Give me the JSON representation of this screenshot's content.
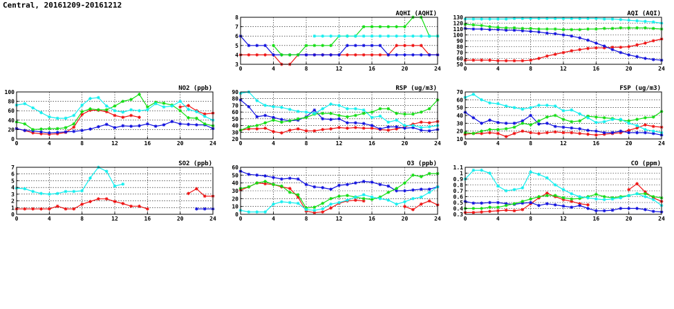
{
  "title": "Central, 20161209-20161212",
  "colors": {
    "red": "#ee1111",
    "blue": "#1010dd",
    "green": "#11dd11",
    "cyan": "#11eeee"
  },
  "chart_data": [
    {
      "id": "aqhi",
      "type": "line",
      "title": "AQHI (AQHI)",
      "xlim": [
        0,
        24
      ],
      "xticks": [
        0,
        4,
        8,
        12,
        16,
        20,
        24
      ],
      "ylim": [
        3,
        8
      ],
      "yticks": [
        3,
        4,
        5,
        6,
        7,
        8
      ],
      "grid": true,
      "series": [
        {
          "color": "red",
          "y": [
            4,
            4,
            4,
            4,
            4,
            3,
            3,
            4,
            4,
            4,
            4,
            4,
            4,
            4,
            4,
            4,
            4,
            4,
            4,
            5,
            5,
            5,
            5,
            4,
            4
          ]
        },
        {
          "color": "blue",
          "y": [
            6,
            5,
            5,
            5,
            4,
            4,
            4,
            4,
            4,
            4,
            4,
            4,
            4,
            5,
            5,
            5,
            5,
            5,
            4,
            4,
            4,
            4,
            4,
            4,
            4
          ]
        },
        {
          "color": "green",
          "y": [
            null,
            null,
            null,
            null,
            5,
            4,
            4,
            4,
            5,
            5,
            5,
            5,
            6,
            6,
            6,
            7,
            7,
            7,
            7,
            7,
            7,
            8,
            8,
            6,
            6
          ]
        },
        {
          "color": "cyan",
          "y": [
            null,
            null,
            null,
            null,
            null,
            null,
            null,
            null,
            null,
            6,
            6,
            6,
            6,
            6,
            6,
            6,
            6,
            6,
            6,
            6,
            6,
            6,
            6,
            6,
            6
          ]
        }
      ]
    },
    {
      "id": "aqi",
      "type": "line",
      "title": "AQI (AQI)",
      "xlim": [
        0,
        24
      ],
      "xticks": [
        0,
        4,
        8,
        12,
        16,
        20,
        24
      ],
      "ylim": [
        50,
        130
      ],
      "yticks": [
        50,
        60,
        70,
        80,
        90,
        100,
        110,
        120,
        130
      ],
      "grid": true,
      "series": [
        {
          "color": "red",
          "y": [
            57,
            57,
            57,
            57,
            56,
            56,
            56,
            56,
            57,
            60,
            64,
            67,
            70,
            73,
            75,
            77,
            78,
            78,
            79,
            79,
            80,
            83,
            86,
            90,
            93
          ]
        },
        {
          "color": "blue",
          "y": [
            111,
            110,
            110,
            109,
            109,
            108,
            108,
            107,
            106,
            105,
            103,
            102,
            100,
            98,
            95,
            91,
            86,
            81,
            75,
            70,
            66,
            63,
            60,
            58,
            57
          ]
        },
        {
          "color": "green",
          "y": [
            118,
            117,
            116,
            114,
            113,
            112,
            112,
            111,
            111,
            110,
            110,
            110,
            109,
            109,
            109,
            110,
            110,
            111,
            111,
            112,
            112,
            112,
            112,
            111,
            110
          ]
        },
        {
          "color": "cyan",
          "y": [
            127,
            127,
            127,
            127,
            127,
            127,
            128,
            128,
            128,
            128,
            128,
            128,
            128,
            128,
            128,
            128,
            128,
            127,
            127,
            126,
            125,
            124,
            123,
            122,
            120
          ]
        }
      ]
    },
    {
      "id": "no2",
      "type": "line",
      "title": "NO2 (ppb)",
      "xlim": [
        0,
        24
      ],
      "xticks": [
        0,
        4,
        8,
        12,
        16,
        20,
        24
      ],
      "ylim": [
        0,
        100
      ],
      "yticks": [
        0,
        20,
        40,
        60,
        80,
        100
      ],
      "grid": true,
      "series": [
        {
          "color": "red",
          "y": [
            22,
            18,
            13,
            11,
            10,
            11,
            14,
            25,
            52,
            61,
            61,
            58,
            50,
            46,
            50,
            46,
            null,
            null,
            null,
            null,
            68,
            71,
            60,
            53,
            55
          ]
        },
        {
          "color": "blue",
          "y": [
            22,
            18,
            17,
            15,
            13,
            14,
            15,
            16,
            18,
            21,
            26,
            31,
            24,
            28,
            27,
            28,
            32,
            27,
            30,
            37,
            32,
            31,
            30,
            30,
            22
          ]
        },
        {
          "color": "green",
          "y": [
            36,
            32,
            20,
            21,
            22,
            22,
            24,
            32,
            58,
            64,
            62,
            62,
            70,
            80,
            84,
            95,
            68,
            78,
            76,
            72,
            60,
            45,
            44,
            32,
            28
          ]
        },
        {
          "color": "cyan",
          "y": [
            72,
            75,
            66,
            56,
            47,
            44,
            44,
            50,
            72,
            86,
            88,
            70,
            60,
            57,
            62,
            60,
            62,
            75,
            68,
            70,
            80,
            63,
            58,
            48,
            40
          ]
        }
      ]
    },
    {
      "id": "rsp",
      "type": "line",
      "title": "RSP (ug/m3)",
      "xlim": [
        0,
        24
      ],
      "xticks": [
        0,
        4,
        8,
        12,
        16,
        20,
        24
      ],
      "ylim": [
        20,
        90
      ],
      "yticks": [
        20,
        30,
        40,
        50,
        60,
        70,
        80,
        90
      ],
      "grid": true,
      "series": [
        {
          "color": "red",
          "y": [
            33,
            35,
            35,
            36,
            31,
            29,
            33,
            35,
            32,
            32,
            34,
            35,
            37,
            36,
            37,
            36,
            36,
            34,
            33,
            35,
            38,
            42,
            45,
            44,
            46
          ]
        },
        {
          "color": "blue",
          "y": [
            78,
            68,
            53,
            55,
            52,
            49,
            47,
            48,
            53,
            63,
            50,
            49,
            50,
            44,
            44,
            43,
            40,
            35,
            38,
            38,
            36,
            37,
            33,
            32,
            34
          ]
        },
        {
          "color": "green",
          "y": [
            33,
            38,
            40,
            44,
            48,
            45,
            47,
            50,
            52,
            57,
            58,
            58,
            55,
            53,
            55,
            58,
            60,
            65,
            65,
            58,
            57,
            57,
            60,
            65,
            78
          ]
        },
        {
          "color": "cyan",
          "y": [
            88,
            90,
            77,
            70,
            68,
            67,
            64,
            61,
            60,
            58,
            65,
            72,
            70,
            65,
            65,
            63,
            52,
            54,
            45,
            48,
            40,
            40,
            37,
            38,
            40
          ]
        }
      ]
    },
    {
      "id": "fsp",
      "type": "line",
      "title": "FSP (ug/m3)",
      "xlim": [
        0,
        24
      ],
      "xticks": [
        0,
        4,
        8,
        12,
        16,
        20,
        24
      ],
      "ylim": [
        10,
        70
      ],
      "yticks": [
        10,
        20,
        30,
        40,
        50,
        60,
        70
      ],
      "grid": true,
      "series": [
        {
          "color": "red",
          "y": [
            16,
            17,
            17,
            18,
            17,
            13,
            17,
            20,
            18,
            17,
            18,
            19,
            18,
            18,
            17,
            16,
            15,
            16,
            17,
            18,
            21,
            24,
            28,
            26,
            25
          ]
        },
        {
          "color": "blue",
          "y": [
            44,
            37,
            30,
            34,
            31,
            30,
            30,
            33,
            40,
            29,
            30,
            26,
            25,
            24,
            23,
            21,
            20,
            18,
            18,
            20,
            18,
            18,
            18,
            17,
            15
          ]
        },
        {
          "color": "green",
          "y": [
            18,
            17,
            20,
            22,
            22,
            23,
            25,
            30,
            28,
            33,
            38,
            40,
            35,
            32,
            33,
            39,
            38,
            37,
            36,
            34,
            33,
            35,
            37,
            38,
            45
          ]
        },
        {
          "color": "cyan",
          "y": [
            63,
            67,
            60,
            56,
            55,
            52,
            50,
            48,
            50,
            53,
            53,
            52,
            46,
            47,
            42,
            37,
            31,
            32,
            35,
            35,
            30,
            27,
            22,
            20,
            18
          ]
        }
      ]
    },
    {
      "id": "so2",
      "type": "line",
      "title": "SO2 (ppb)",
      "xlim": [
        0,
        24
      ],
      "xticks": [
        0,
        4,
        8,
        12,
        16,
        20,
        24
      ],
      "ylim": [
        0,
        7
      ],
      "yticks": [
        0,
        1,
        2,
        3,
        4,
        5,
        6,
        7
      ],
      "grid": true,
      "series": [
        {
          "color": "red",
          "y": [
            0.8,
            0.8,
            0.8,
            0.8,
            0.8,
            1.2,
            0.8,
            0.8,
            1.5,
            1.9,
            2.3,
            2.3,
            1.9,
            1.6,
            1.2,
            1.2,
            0.8,
            null,
            null,
            null,
            null,
            3.1,
            3.8,
            2.7,
            2.7
          ]
        },
        {
          "color": "blue",
          "y": [
            null,
            null,
            null,
            null,
            null,
            null,
            null,
            null,
            null,
            null,
            null,
            null,
            null,
            null,
            null,
            null,
            null,
            null,
            null,
            null,
            null,
            null,
            0.8,
            0.8,
            0.8
          ]
        },
        {
          "color": "cyan",
          "y": [
            3.9,
            3.8,
            3.4,
            3.1,
            3.0,
            3.1,
            3.4,
            3.4,
            3.5,
            5.4,
            7.0,
            6.4,
            4.2,
            4.5,
            null,
            null,
            null,
            null,
            null,
            null,
            null,
            null,
            null,
            null,
            null
          ]
        }
      ]
    },
    {
      "id": "o3",
      "type": "line",
      "title": "O3 (ppb)",
      "xlim": [
        0,
        24
      ],
      "xticks": [
        0,
        4,
        8,
        12,
        16,
        20,
        24
      ],
      "ylim": [
        0,
        60
      ],
      "yticks": [
        0,
        10,
        20,
        30,
        40,
        50,
        60
      ],
      "grid": true,
      "series": [
        {
          "color": "red",
          "y": [
            31,
            35,
            40,
            39,
            38,
            35,
            33,
            22,
            4,
            2,
            3,
            8,
            14,
            17,
            18,
            17,
            null,
            null,
            null,
            null,
            10,
            6,
            13,
            17,
            12
          ]
        },
        {
          "color": "blue",
          "y": [
            55,
            51,
            50,
            49,
            47,
            45,
            46,
            45,
            38,
            35,
            34,
            32,
            37,
            38,
            40,
            42,
            41,
            38,
            36,
            30,
            30,
            31,
            32,
            32,
            35
          ]
        },
        {
          "color": "green",
          "y": [
            33,
            35,
            40,
            42,
            38,
            36,
            28,
            25,
            8,
            9,
            14,
            20,
            23,
            24,
            22,
            20,
            19,
            22,
            28,
            33,
            40,
            50,
            48,
            52,
            52
          ]
        },
        {
          "color": "cyan",
          "y": [
            5,
            3,
            3,
            3,
            13,
            16,
            15,
            14,
            6,
            5,
            7,
            13,
            15,
            18,
            22,
            25,
            22,
            20,
            18,
            13,
            16,
            20,
            22,
            28,
            35
          ]
        }
      ]
    },
    {
      "id": "co",
      "type": "line",
      "title": "CO (ppm)",
      "xlim": [
        0,
        24
      ],
      "xticks": [
        0,
        4,
        8,
        12,
        16,
        20,
        24
      ],
      "ylim": [
        0.3,
        1.1
      ],
      "yticks": [
        0.3,
        0.4,
        0.5,
        0.6,
        0.7,
        0.8,
        0.9,
        1.0,
        1.1
      ],
      "grid": true,
      "series": [
        {
          "color": "red",
          "y": [
            0.33,
            0.33,
            0.34,
            0.35,
            0.36,
            0.37,
            0.36,
            0.38,
            0.48,
            0.58,
            0.66,
            0.6,
            0.55,
            0.52,
            0.48,
            0.46,
            null,
            null,
            null,
            null,
            0.72,
            0.82,
            0.68,
            0.58,
            0.52
          ]
        },
        {
          "color": "blue",
          "y": [
            0.52,
            0.49,
            0.49,
            0.5,
            0.5,
            0.48,
            0.47,
            0.49,
            0.5,
            0.45,
            0.48,
            0.46,
            0.44,
            0.42,
            0.45,
            0.4,
            0.36,
            0.36,
            0.37,
            0.4,
            0.4,
            0.4,
            0.38,
            0.35,
            0.34
          ]
        },
        {
          "color": "green",
          "y": [
            0.4,
            0.4,
            0.4,
            0.42,
            0.42,
            0.45,
            0.48,
            0.52,
            0.56,
            0.6,
            0.62,
            0.62,
            0.58,
            0.56,
            0.57,
            0.6,
            0.64,
            0.6,
            0.58,
            0.6,
            0.62,
            0.65,
            0.65,
            0.6,
            0.58
          ]
        },
        {
          "color": "cyan",
          "y": [
            0.9,
            1.05,
            1.05,
            1.0,
            0.78,
            0.7,
            0.72,
            0.75,
            1.02,
            0.98,
            0.92,
            0.8,
            0.72,
            0.65,
            0.6,
            0.58,
            0.56,
            0.55,
            0.56,
            0.58,
            0.62,
            0.65,
            0.6,
            0.55,
            0.45
          ]
        }
      ]
    }
  ]
}
